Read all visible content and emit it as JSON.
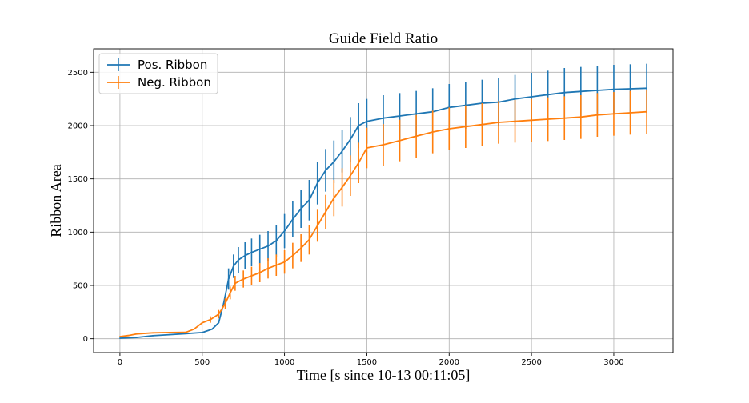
{
  "chart_data": {
    "type": "line",
    "title": "Guide Field Ratio",
    "xlabel": "Time [s since 10-13 00:11:05]",
    "ylabel": "Ribbon Area",
    "xlim": [
      -160,
      3360
    ],
    "ylim": [
      -130,
      2720
    ],
    "x_ticks": [
      0,
      500,
      1000,
      1500,
      2000,
      2500,
      3000
    ],
    "y_ticks": [
      0,
      500,
      1000,
      1500,
      2000,
      2500
    ],
    "grid": true,
    "legend_position": "top-left",
    "series": [
      {
        "name": "Pos. Ribbon",
        "color": "#1f77b4",
        "x": [
          0,
          100,
          200,
          300,
          400,
          500,
          560,
          600,
          630,
          660,
          690,
          720,
          760,
          800,
          850,
          900,
          950,
          1000,
          1050,
          1100,
          1150,
          1200,
          1250,
          1300,
          1350,
          1400,
          1450,
          1500,
          1600,
          1700,
          1800,
          1900,
          2000,
          2100,
          2200,
          2300,
          2400,
          2500,
          2600,
          2700,
          2800,
          2900,
          3000,
          3100,
          3200
        ],
        "y": [
          5,
          12,
          28,
          38,
          48,
          58,
          90,
          150,
          330,
          560,
          680,
          740,
          780,
          810,
          840,
          870,
          920,
          1010,
          1120,
          1220,
          1300,
          1460,
          1580,
          1660,
          1760,
          1870,
          2000,
          2040,
          2070,
          2090,
          2110,
          2130,
          2170,
          2190,
          2210,
          2220,
          2250,
          2270,
          2290,
          2310,
          2320,
          2330,
          2340,
          2345,
          2350
        ],
        "err": [
          0,
          0,
          0,
          0,
          0,
          0,
          0,
          0,
          0,
          100,
          110,
          120,
          125,
          130,
          135,
          140,
          150,
          160,
          170,
          180,
          190,
          200,
          200,
          200,
          200,
          210,
          210,
          210,
          215,
          215,
          215,
          220,
          220,
          220,
          220,
          225,
          225,
          225,
          225,
          230,
          230,
          230,
          230,
          230,
          230
        ]
      },
      {
        "name": "Neg. Ribbon",
        "color": "#ff7f0e",
        "x": [
          0,
          50,
          100,
          200,
          300,
          400,
          450,
          500,
          550,
          600,
          640,
          670,
          700,
          750,
          800,
          850,
          900,
          950,
          1000,
          1050,
          1100,
          1150,
          1200,
          1250,
          1300,
          1350,
          1400,
          1450,
          1500,
          1600,
          1700,
          1800,
          1900,
          2000,
          2100,
          2200,
          2300,
          2400,
          2500,
          2600,
          2700,
          2800,
          2900,
          3000,
          3100,
          3200
        ],
        "y": [
          20,
          30,
          45,
          55,
          58,
          60,
          90,
          150,
          180,
          230,
          330,
          430,
          520,
          560,
          590,
          620,
          660,
          690,
          720,
          780,
          850,
          930,
          1060,
          1190,
          1320,
          1420,
          1530,
          1650,
          1790,
          1820,
          1860,
          1900,
          1940,
          1970,
          1990,
          2010,
          2030,
          2040,
          2050,
          2060,
          2070,
          2080,
          2100,
          2110,
          2120,
          2130
        ],
        "err": [
          0,
          0,
          0,
          0,
          0,
          0,
          0,
          0,
          30,
          40,
          50,
          60,
          70,
          80,
          85,
          90,
          95,
          100,
          110,
          120,
          130,
          140,
          150,
          160,
          170,
          180,
          190,
          190,
          190,
          195,
          195,
          200,
          200,
          200,
          200,
          200,
          200,
          200,
          200,
          205,
          205,
          205,
          205,
          205,
          205,
          205
        ]
      }
    ]
  }
}
